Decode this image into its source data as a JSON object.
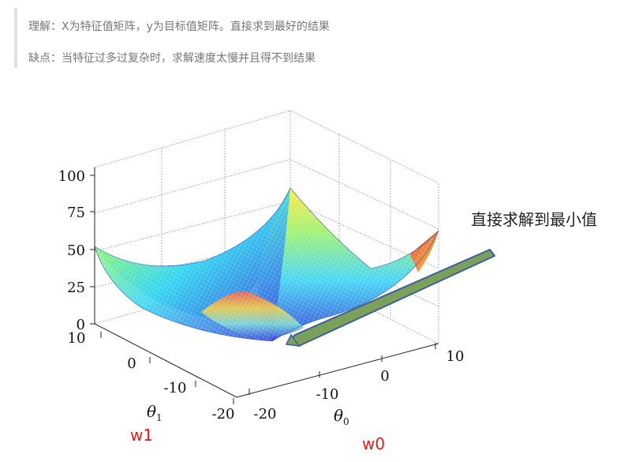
{
  "quote": {
    "line1": "理解：X为特征值矩阵，y为目标值矩阵。直接求到最好的结果",
    "line2": "缺点：当特征过多过复杂时，求解速度太慢并且得不到结果"
  },
  "figure": {
    "callout": "直接求解到最小值",
    "z_ticks": [
      "100",
      "75",
      "50",
      "25",
      "0"
    ],
    "theta1_ticks": [
      "10",
      "0",
      "-10",
      "-20"
    ],
    "theta0_ticks": [
      "-20",
      "-10",
      "0",
      "10"
    ],
    "theta1_label": "θ",
    "theta1_sub": "1",
    "theta0_label": "θ",
    "theta0_sub": "0",
    "w1_label": "w1",
    "w0_label": "w0",
    "colors": {
      "arrow_fill": "#7ba05a",
      "arrow_stroke": "#3a5fa0",
      "red_label": "#e8191b"
    }
  }
}
